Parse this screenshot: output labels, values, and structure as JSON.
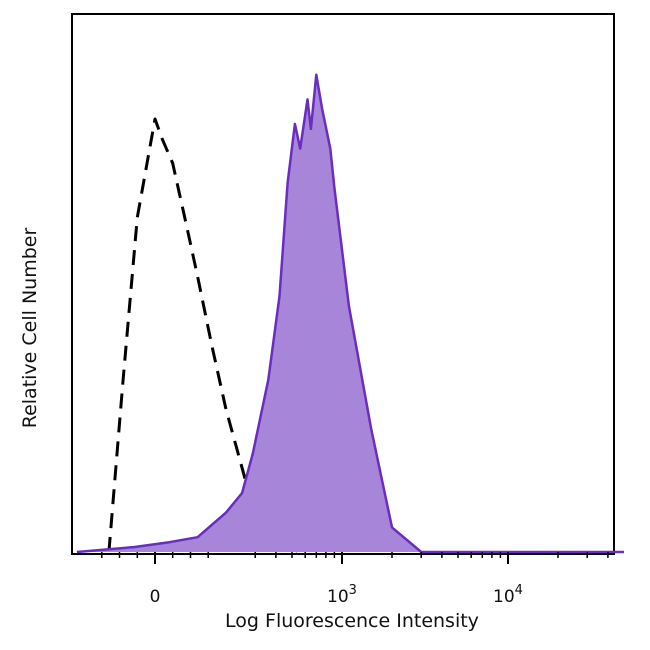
{
  "chart_data": {
    "type": "area",
    "title": "",
    "xlabel": "Log Fluorescence Intensity",
    "ylabel": "Relative Cell Number",
    "x_scale": "biexponential",
    "xlim": [
      -200,
      50000
    ],
    "ylim": [
      0,
      1.0
    ],
    "tick_labels": [
      {
        "value": 0,
        "base": "0",
        "exp": ""
      },
      {
        "value": 1000,
        "base": "10",
        "exp": "3"
      },
      {
        "value": 10000,
        "base": "10",
        "exp": "4"
      }
    ],
    "grid": false,
    "legend": "none",
    "series": [
      {
        "style": "dashed",
        "stroke": "#000000",
        "fill": "none",
        "x": [
          -130,
          -90,
          -50,
          -20,
          0,
          20,
          50,
          90,
          120,
          160,
          200,
          260,
          320,
          380,
          460,
          560
        ],
        "y": [
          0.0,
          0.35,
          0.68,
          0.8,
          0.88,
          0.84,
          0.79,
          0.66,
          0.56,
          0.42,
          0.29,
          0.15,
          0.07,
          0.02,
          0.01,
          0.0
        ]
      },
      {
        "style": "solid",
        "stroke": "#6a2dbf",
        "fill": "#a785d9",
        "x": [
          -220,
          -60,
          40,
          120,
          200,
          250,
          290,
          360,
          420,
          470,
          520,
          560,
          620,
          650,
          700,
          760,
          850,
          900,
          1100,
          1500,
          2000,
          3000,
          50000
        ],
        "y": [
          0.0,
          0.01,
          0.02,
          0.03,
          0.08,
          0.12,
          0.2,
          0.35,
          0.52,
          0.75,
          0.87,
          0.82,
          0.92,
          0.86,
          0.97,
          0.9,
          0.82,
          0.74,
          0.5,
          0.25,
          0.05,
          0.0,
          0.0
        ]
      }
    ]
  }
}
